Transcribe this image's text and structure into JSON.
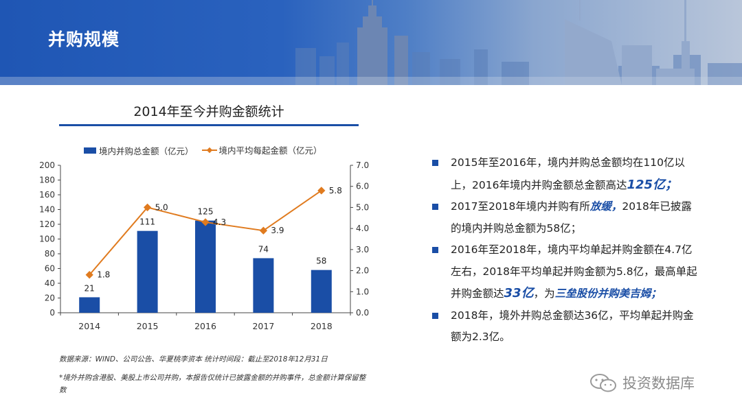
{
  "header": {
    "title": "并购规模"
  },
  "chart_data": {
    "type": "bar",
    "title": "2014年至今并购金额统计",
    "categories": [
      "2014",
      "2015",
      "2016",
      "2017",
      "2018"
    ],
    "series": [
      {
        "name": "境内并购总金额（亿元）",
        "type": "bar",
        "axis": "left",
        "values": [
          21,
          111,
          125,
          74,
          58
        ],
        "labels": [
          "21",
          "111",
          "125",
          "74",
          "58"
        ]
      },
      {
        "name": "境内平均每起金额（亿元）",
        "type": "line",
        "axis": "right",
        "values": [
          1.8,
          5.0,
          4.3,
          3.9,
          5.8
        ],
        "labels": [
          "1.8",
          "5.0",
          "4.3",
          "3.9",
          "5.8"
        ]
      }
    ],
    "y_left": {
      "range": [
        0,
        200
      ],
      "ticks": [
        "0",
        "20",
        "40",
        "60",
        "80",
        "100",
        "120",
        "140",
        "160",
        "180",
        "200"
      ]
    },
    "y_right": {
      "range": [
        0,
        7
      ],
      "ticks": [
        "0.0",
        "1.0",
        "2.0",
        "3.0",
        "4.0",
        "5.0",
        "6.0",
        "7.0"
      ]
    },
    "grid": false,
    "legend": "top",
    "colors": {
      "bar": "#1a4ea6",
      "line": "#e07b1f"
    }
  },
  "notes": [
    {
      "parts": [
        {
          "t": "2015年至2016年，境内并购总金额均在110亿以上，2016年境内并购金额总金额高达"
        },
        {
          "t": "125亿；",
          "em": true,
          "big": true
        }
      ]
    },
    {
      "parts": [
        {
          "t": "2017至2018年境内并购有所"
        },
        {
          "t": "放缓，",
          "em": true
        },
        {
          "t": "2018年已披露的境内并购总金额为58亿；"
        }
      ]
    },
    {
      "parts": [
        {
          "t": "2016年至2018年，境内平均单起并购金额在4.7亿左右，2018年平均单起并购金额为5.8亿，最高单起并购金额达"
        },
        {
          "t": "33亿",
          "em": true,
          "big": true
        },
        {
          "t": "，为"
        },
        {
          "t": "三垒股份并购美吉姆；",
          "em": true
        }
      ]
    },
    {
      "parts": [
        {
          "t": "2018年，境外并购总金额达36亿，平均单起并购金额为2.3亿。"
        }
      ]
    }
  ],
  "source": "数据来源：WIND、公司公告、华夏桃李资本    统计时间段：截止至2018年12月31日",
  "footnote": "*境外并购含港股、美股上市公司并购，本报告仅统计已披露金额的并购事件，总金额计算保留整数",
  "watermark": "投资数据库"
}
